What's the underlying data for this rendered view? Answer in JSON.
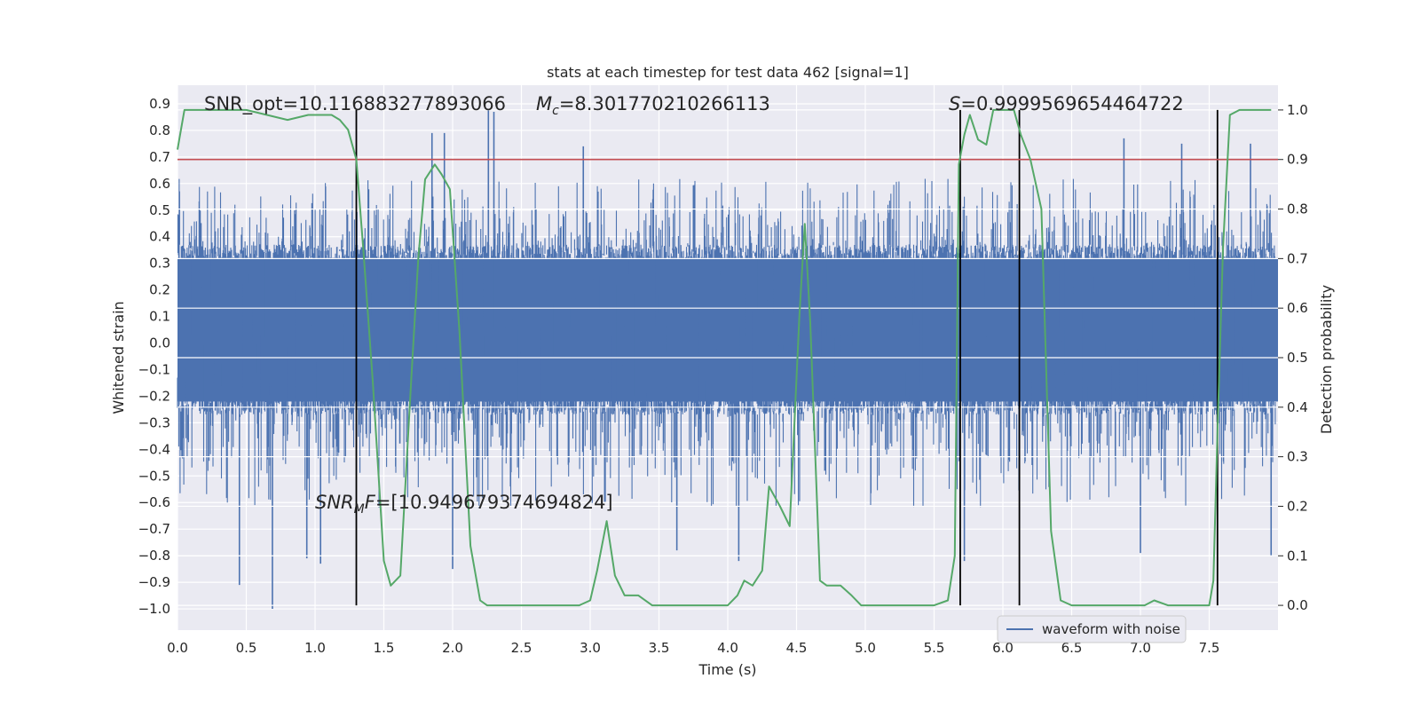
{
  "chart_data": {
    "type": "line",
    "title": "stats at each timestep for test data 462 [signal=1]",
    "xlabel": "Time (s)",
    "ylabel": "Whitened strain",
    "ylabel_right": "Detection probability",
    "xlim": [
      0.0,
      8.0
    ],
    "ylim": [
      -1.08,
      0.97
    ],
    "ylim_right": [
      -0.05,
      1.05
    ],
    "x_ticks": [
      "0.0",
      "0.5",
      "1.0",
      "1.5",
      "2.0",
      "2.5",
      "3.0",
      "3.5",
      "4.0",
      "4.5",
      "5.0",
      "5.5",
      "6.0",
      "6.5",
      "7.0",
      "7.5"
    ],
    "y_ticks": [
      "0.9",
      "0.8",
      "0.7",
      "0.6",
      "0.5",
      "0.4",
      "0.3",
      "0.2",
      "0.1",
      "0.0",
      "−0.1",
      "−0.2",
      "−0.3",
      "−0.4",
      "−0.5",
      "−0.6",
      "−0.7",
      "−0.8",
      "−0.9",
      "−1.0"
    ],
    "y_ticks_right": [
      "1.0",
      "0.9",
      "0.8",
      "0.7",
      "0.6",
      "0.5",
      "0.4",
      "0.3",
      "0.2",
      "0.1",
      "0.0"
    ],
    "grid": true,
    "legend": {
      "position": "lower-right",
      "entries": [
        "waveform with noise"
      ]
    },
    "annotations": {
      "snr_opt": "SNR_opt=10.116883277893066",
      "mc_symbol": "M",
      "mc_sub": "c",
      "mc_value": "=8.301770210266113",
      "s_symbol": "S",
      "s_value": "=0.9999569654464722",
      "snrmf_symbol": "SNR",
      "snrmf_sub": "M",
      "snrmf_f": "F",
      "snrmf_value": "=[10.949679374694824]"
    },
    "threshold_right": 0.9,
    "vertical_lines_x": [
      1.3,
      5.69,
      6.12,
      7.56
    ],
    "waveform": {
      "name": "waveform with noise",
      "color": "#4c72b0",
      "core_range": [
        -0.22,
        0.32
      ],
      "typical_envelope": [
        -0.46,
        0.5
      ],
      "extreme_range": [
        -1.0,
        0.88
      ],
      "peaks": [
        {
          "x": 0.69,
          "y": -1.0
        },
        {
          "x": 0.45,
          "y": -0.91
        },
        {
          "x": 1.04,
          "y": -0.83
        },
        {
          "x": 0.94,
          "y": -0.81
        },
        {
          "x": 1.85,
          "y": 0.79
        },
        {
          "x": 1.94,
          "y": 0.79
        },
        {
          "x": 2.3,
          "y": 0.87
        },
        {
          "x": 2.26,
          "y": 0.88
        },
        {
          "x": 2.0,
          "y": -0.85
        },
        {
          "x": 5.72,
          "y": -0.82
        },
        {
          "x": 4.08,
          "y": -0.82
        },
        {
          "x": 3.63,
          "y": -0.78
        },
        {
          "x": 6.88,
          "y": 0.77
        },
        {
          "x": 7.3,
          "y": 0.75
        },
        {
          "x": 7.8,
          "y": 0.75
        },
        {
          "x": 7.95,
          "y": -0.8
        },
        {
          "x": 7.0,
          "y": -0.79
        },
        {
          "x": 2.95,
          "y": 0.74
        }
      ]
    },
    "probability": {
      "name": "detection probability",
      "color": "#55a868",
      "x": [
        0.0,
        0.05,
        0.2,
        0.35,
        0.5,
        0.65,
        0.8,
        0.95,
        1.05,
        1.12,
        1.18,
        1.24,
        1.3,
        1.35,
        1.42,
        1.5,
        1.55,
        1.62,
        1.7,
        1.75,
        1.8,
        1.87,
        1.92,
        1.98,
        2.05,
        2.13,
        2.2,
        2.25,
        2.35,
        2.5,
        2.65,
        2.75,
        2.85,
        2.92,
        3.0,
        3.05,
        3.12,
        3.18,
        3.25,
        3.35,
        3.45,
        3.55,
        3.62,
        3.75,
        3.85,
        3.95,
        4.0,
        4.07,
        4.12,
        4.18,
        4.25,
        4.3,
        4.38,
        4.45,
        4.52,
        4.56,
        4.6,
        4.67,
        4.72,
        4.82,
        4.9,
        4.97,
        5.05,
        5.2,
        5.35,
        5.5,
        5.6,
        5.65,
        5.68,
        5.72,
        5.76,
        5.82,
        5.88,
        5.93,
        5.99,
        6.03,
        6.08,
        6.13,
        6.2,
        6.28,
        6.35,
        6.42,
        6.5,
        6.65,
        6.8,
        6.95,
        7.03,
        7.1,
        7.2,
        7.3,
        7.38,
        7.44,
        7.5,
        7.53,
        7.56,
        7.6,
        7.65,
        7.72,
        7.8,
        7.95
      ],
      "values": [
        0.92,
        1.0,
        1.0,
        1.0,
        1.0,
        0.99,
        0.98,
        0.99,
        0.99,
        0.99,
        0.98,
        0.96,
        0.9,
        0.72,
        0.45,
        0.09,
        0.04,
        0.06,
        0.46,
        0.7,
        0.86,
        0.89,
        0.87,
        0.84,
        0.55,
        0.12,
        0.01,
        0.0,
        0.0,
        0.0,
        0.0,
        0.0,
        0.0,
        0.0,
        0.01,
        0.07,
        0.17,
        0.06,
        0.02,
        0.02,
        0.0,
        0.0,
        0.0,
        0.0,
        0.0,
        0.0,
        0.0,
        0.02,
        0.05,
        0.04,
        0.07,
        0.24,
        0.2,
        0.16,
        0.58,
        0.77,
        0.57,
        0.05,
        0.04,
        0.04,
        0.02,
        0.0,
        0.0,
        0.0,
        0.0,
        0.0,
        0.01,
        0.1,
        0.89,
        0.95,
        0.99,
        0.94,
        0.93,
        1.0,
        1.0,
        1.0,
        1.0,
        0.95,
        0.9,
        0.8,
        0.15,
        0.01,
        0.0,
        0.0,
        0.0,
        0.0,
        0.0,
        0.01,
        0.0,
        0.0,
        0.0,
        0.0,
        0.0,
        0.05,
        0.35,
        0.72,
        0.99,
        1.0,
        1.0,
        1.0
      ]
    }
  }
}
